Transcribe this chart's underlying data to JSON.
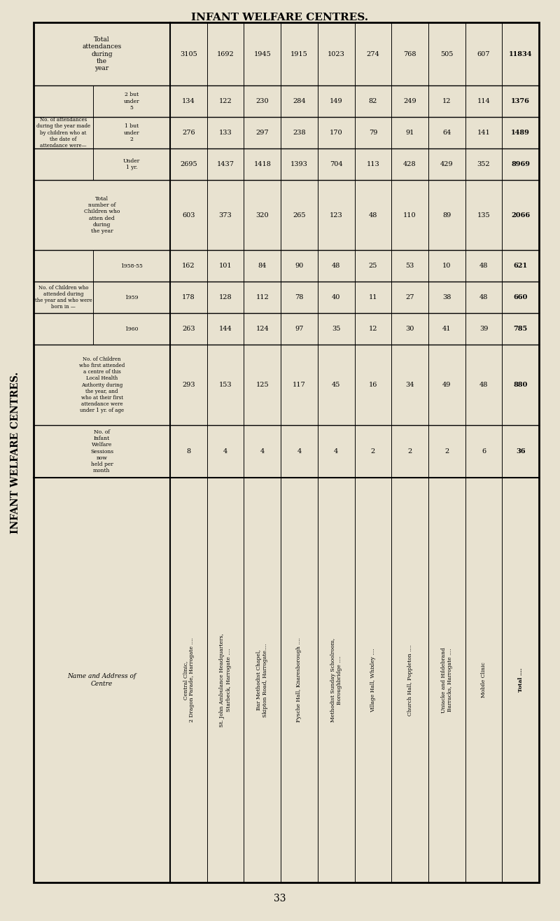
{
  "title": "INFANT WELFARE CENTRES.",
  "page_number": "33",
  "bg_color": "#e8e2d0",
  "rows": [
    {
      "name": "Central Clinic,\n2 Dragon Parade, Harrogate ....",
      "sessions": "8",
      "first_attended": "293",
      "born_1960": "263",
      "born_1959": "178",
      "born_1958_55": "162",
      "total_children": "603",
      "under_1": "2695",
      "age_1_2": "276",
      "age_2_5": "134",
      "total_attend": "3105"
    },
    {
      "name": "St. John Ambulance Headquarters,\nStarbeck, Harrogate ....",
      "sessions": "4",
      "first_attended": "153",
      "born_1960": "144",
      "born_1959": "128",
      "born_1958_55": "101",
      "total_children": "373",
      "under_1": "1437",
      "age_1_2": "133",
      "age_2_5": "122",
      "total_attend": "1692"
    },
    {
      "name": "Bar Methodist Chapel,\nSkipton Road, Harrogate....",
      "sessions": "4",
      "first_attended": "125",
      "born_1960": "124",
      "born_1959": "112",
      "born_1958_55": "84",
      "total_children": "320",
      "under_1": "1418",
      "age_1_2": "297",
      "age_2_5": "230",
      "total_attend": "1945"
    },
    {
      "name": "Fysche Hall, Knaresborough ....",
      "sessions": "4",
      "first_attended": "117",
      "born_1960": "97",
      "born_1959": "78",
      "born_1958_55": "90",
      "total_children": "265",
      "under_1": "1393",
      "age_1_2": "238",
      "age_2_5": "284",
      "total_attend": "1915"
    },
    {
      "name": "Methodist Sunday Schoolroom,\nBoroughbridge ....",
      "sessions": "4",
      "first_attended": "45",
      "born_1960": "35",
      "born_1959": "40",
      "born_1958_55": "48",
      "total_children": "123",
      "under_1": "704",
      "age_1_2": "170",
      "age_2_5": "149",
      "total_attend": "1023"
    },
    {
      "name": "Village Hall, Whixley ....",
      "sessions": "2",
      "first_attended": "16",
      "born_1960": "12",
      "born_1959": "11",
      "born_1958_55": "25",
      "total_children": "48",
      "under_1": "113",
      "age_1_2": "79",
      "age_2_5": "82",
      "total_attend": "274"
    },
    {
      "name": "Church Hall, Poppleton ....",
      "sessions": "2",
      "first_attended": "34",
      "born_1960": "30",
      "born_1959": "27",
      "born_1958_55": "53",
      "total_children": "110",
      "under_1": "428",
      "age_1_2": "91",
      "age_2_5": "249",
      "total_attend": "768"
    },
    {
      "name": "Uniacke and Hildebrand\nBarracks, Harrogate ....",
      "sessions": "2",
      "first_attended": "49",
      "born_1960": "41",
      "born_1959": "38",
      "born_1958_55": "10",
      "total_children": "89",
      "under_1": "429",
      "age_1_2": "64",
      "age_2_5": "12",
      "total_attend": "505"
    },
    {
      "name": "Mobile Clinic",
      "sessions": "6",
      "first_attended": "48",
      "born_1960": "39",
      "born_1959": "48",
      "born_1958_55": "48",
      "total_children": "135",
      "under_1": "352",
      "age_1_2": "141",
      "age_2_5": "114",
      "total_attend": "607"
    },
    {
      "name": "Total ....",
      "sessions": "36",
      "first_attended": "880",
      "born_1960": "785",
      "born_1959": "660",
      "born_1958_55": "621",
      "total_children": "2066",
      "under_1": "8969",
      "age_1_2": "1489",
      "age_2_5": "1376",
      "total_attend": "11834"
    }
  ],
  "col_keys": [
    "sessions",
    "first_attended",
    "born_1960",
    "born_1959",
    "born_1958_55",
    "total_children",
    "under_1",
    "age_1_2",
    "age_2_5",
    "total_attend"
  ],
  "header_rows": [
    {
      "key": "total_attend",
      "label": "Total\nattendances\nduring\nthe\nyear",
      "span_group": null,
      "span_label": null
    },
    {
      "key": "age_2_5",
      "label": "2 but\nunder\n5",
      "span_group": "attend",
      "span_label": "No. of attendances\nduring the year made\nby children who at\nthe date of\nattendance were—"
    },
    {
      "key": "age_1_2",
      "label": "1 but\nunder\n2",
      "span_group": "attend",
      "span_label": null
    },
    {
      "key": "under_1",
      "label": "Under\n1 yr.",
      "span_group": "attend",
      "span_label": null
    },
    {
      "key": "total_children",
      "label": "Total\nnumber of\nChildren who\natten ded\nduring\nthe year",
      "span_group": null,
      "span_label": null
    },
    {
      "key": "born_1958_55",
      "label": "1958-55",
      "span_group": "born",
      "span_label": "No. of Children who\nattended during\nthe year and who were\nborn in —"
    },
    {
      "key": "born_1959",
      "label": "1959",
      "span_group": "born",
      "span_label": null
    },
    {
      "key": "born_1960",
      "label": "1960",
      "span_group": "born",
      "span_label": null
    },
    {
      "key": "first_attended",
      "label": "No. of Children\nwho first attended\na centre of this\nLocal Health\nAuthority during\nthe year, and\nwho at their first\nattendance were\nunder 1 yr. of age",
      "span_group": null,
      "span_label": null
    },
    {
      "key": "sessions",
      "label": "No. of\nInfant\nWelfare\nSessions\nnow\nheld per\nmonth",
      "span_group": null,
      "span_label": null
    }
  ]
}
